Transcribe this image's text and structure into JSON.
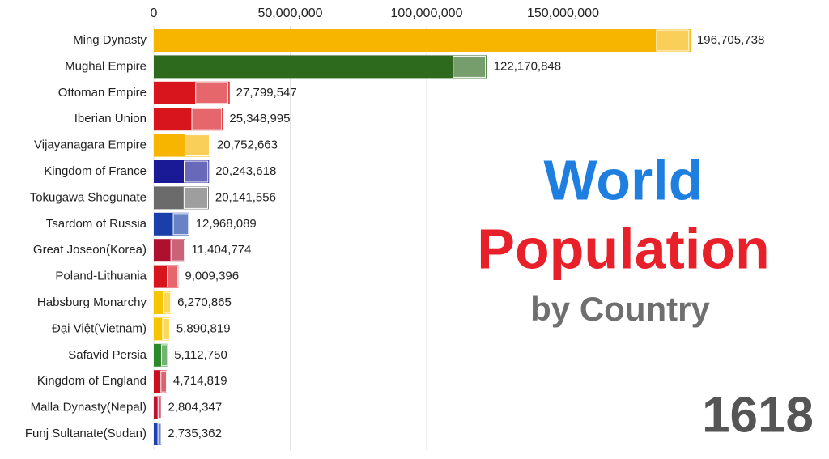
{
  "chart_data": {
    "type": "bar",
    "orientation": "horizontal",
    "title_lines": [
      "World",
      "Population"
    ],
    "subtitle": "by Country",
    "annotation": "1618",
    "categories": [
      "Ming Dynasty",
      "Mughal Empire",
      "Ottoman Empire",
      "Iberian Union",
      "Vijayanagara Empire",
      "Kingdom of France",
      "Tokugawa Shogunate",
      "Tsardom of Russia",
      "Great Joseon(Korea)",
      "Poland-Lithuania",
      "Habsburg Monarchy",
      "Đại Việt(Vietnam)",
      "Safavid Persia",
      "Kingdom of England",
      "Malla Dynasty(Nepal)",
      "Funj Sultanate(Sudan)"
    ],
    "values": [
      196705738,
      122170848,
      27799547,
      25348995,
      20752663,
      20243618,
      20141556,
      12968089,
      11404774,
      9009396,
      6270865,
      5890819,
      5112750,
      4714819,
      2804347,
      2735362
    ],
    "value_labels": [
      "196,705,738",
      "122,170,848",
      "27,799,547",
      "25,348,995",
      "20,752,663",
      "20,243,618",
      "20,141,556",
      "12,968,089",
      "11,404,774",
      "9,009,396",
      "6,270,865",
      "5,890,819",
      "5,112,750",
      "4,714,819",
      "2,804,347",
      "2,735,362"
    ],
    "colors": [
      "#f7b500",
      "#2d6a1e",
      "#d8141c",
      "#d8141c",
      "#f7b500",
      "#1a1a96",
      "#6b6b6b",
      "#1a3fa8",
      "#b01030",
      "#d8141c",
      "#f7c400",
      "#f7c400",
      "#2a8a2a",
      "#c81020",
      "#c01030",
      "#1f3fb0"
    ],
    "xlim": [
      0,
      200000000
    ],
    "xticks": [
      0,
      {
        "value": 50000000,
        "label": "50,000,000"
      },
      {
        "value": 100000000,
        "label": "100,000,000"
      },
      {
        "value": 150000000,
        "label": "150,000,000"
      }
    ],
    "grid": true
  }
}
